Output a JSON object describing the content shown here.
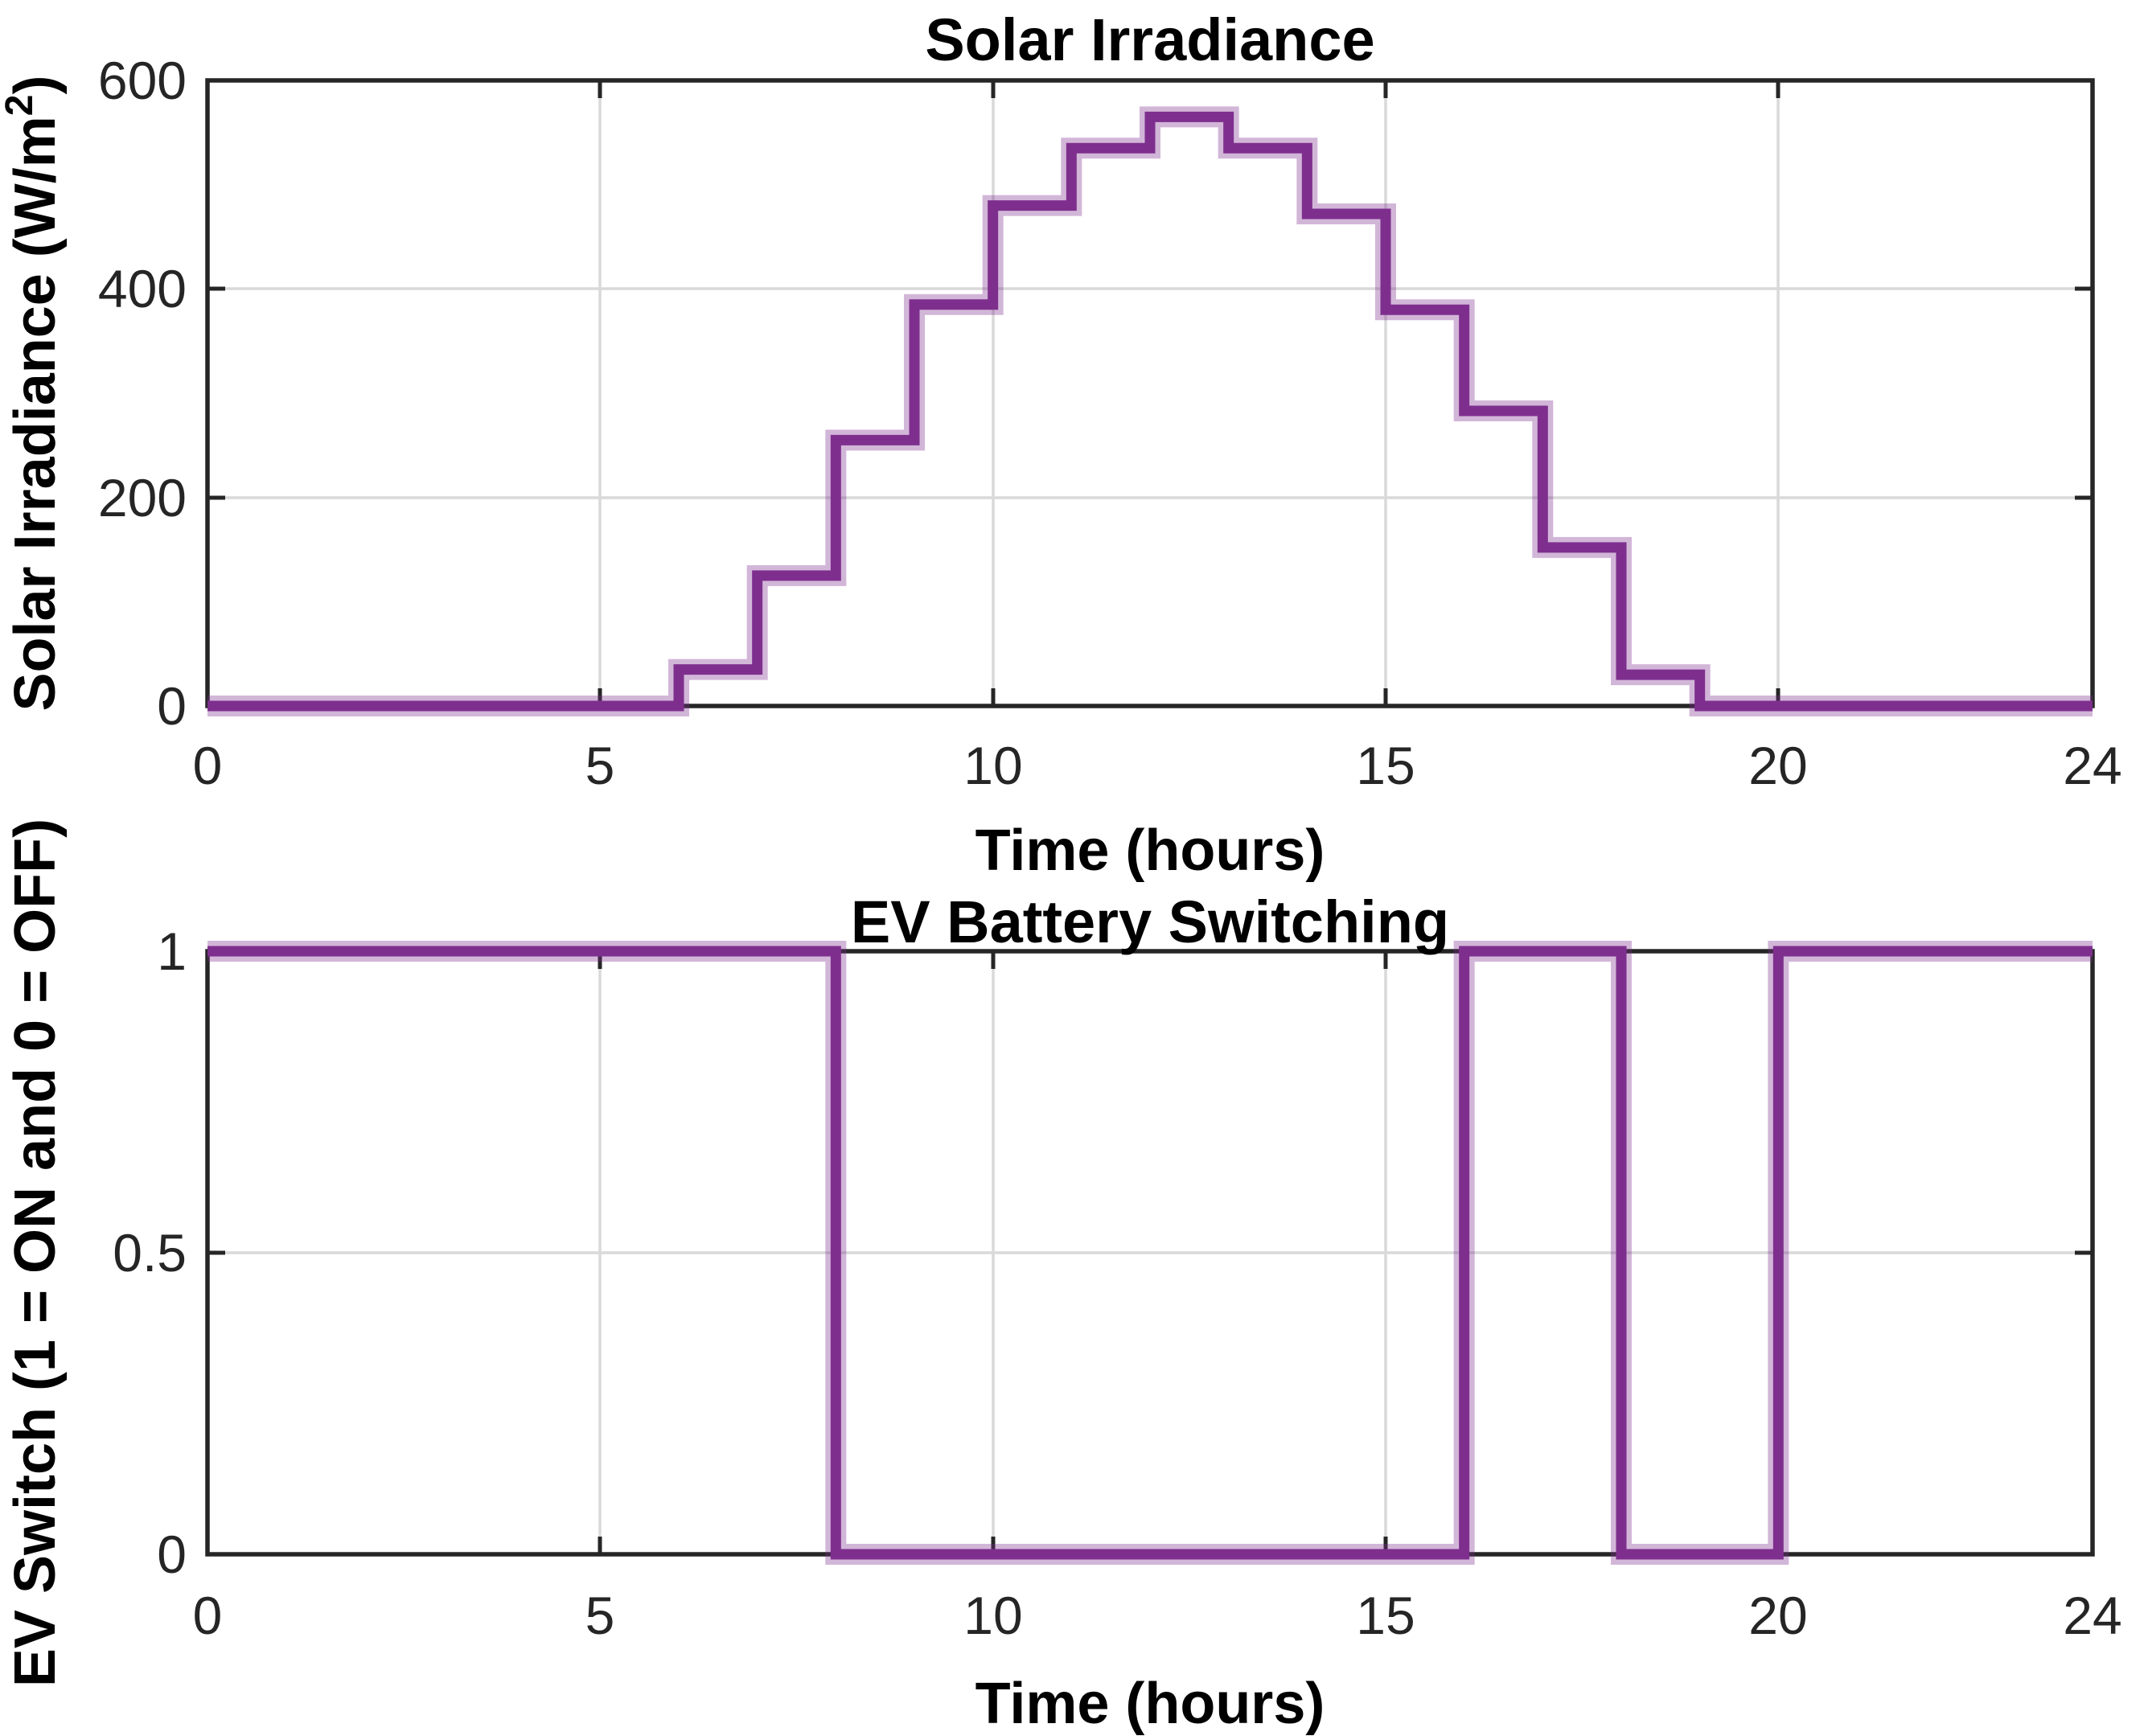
{
  "figure": {
    "background": "#ffffff",
    "line_color": "#7E2F8E",
    "line_halo_color": "rgba(126,47,142,0.35)",
    "axis_color": "#262626",
    "grid_color": "#d9d9d9"
  },
  "plot1": {
    "title": "Solar Irradiance",
    "xlabel": "Time (hours)",
    "ylabel_main": "Solar Irradiance (W/m",
    "ylabel_sup": "2",
    "ylabel_close": ")",
    "x_tick_labels": [
      "0",
      "5",
      "10",
      "15",
      "20",
      "24"
    ],
    "y_tick_labels": [
      "600",
      "400",
      "200",
      "0"
    ]
  },
  "plot2": {
    "title": "EV Battery Switching",
    "xlabel": "Time (hours)",
    "ylabel": "EV Switch (1 = ON and 0 = OFF)",
    "x_tick_labels": [
      "0",
      "5",
      "10",
      "15",
      "20",
      "24"
    ],
    "y_tick_labels": [
      "1",
      "0.5",
      "0"
    ]
  },
  "chart_data": [
    {
      "type": "line",
      "subtype": "stairs",
      "title": "Solar Irradiance",
      "xlabel": "Time (hours)",
      "ylabel": "Solar Irradiance (W/m^2)",
      "xlim": [
        0,
        24
      ],
      "ylim": [
        0,
        600
      ],
      "x_ticks": [
        0,
        5,
        10,
        15,
        20,
        24
      ],
      "y_ticks": [
        0,
        200,
        400,
        600
      ],
      "grid": true,
      "legend": "none",
      "x_step_hours": [
        0,
        1,
        2,
        3,
        4,
        5,
        6,
        7,
        8,
        9,
        10,
        11,
        12,
        13,
        14,
        15,
        16,
        17,
        18,
        19,
        20,
        21,
        22,
        23
      ],
      "values_by_hour": [
        0,
        0,
        0,
        0,
        0,
        0,
        35,
        125,
        255,
        385,
        480,
        535,
        565,
        535,
        472,
        380,
        283,
        152,
        30,
        0,
        0,
        0,
        0,
        0
      ]
    },
    {
      "type": "line",
      "subtype": "stairs",
      "title": "EV Battery Switching",
      "xlabel": "Time (hours)",
      "ylabel": "EV Switch (1 = ON and 0 = OFF)",
      "xlim": [
        0,
        24
      ],
      "ylim": [
        0,
        1
      ],
      "x_ticks": [
        0,
        5,
        10,
        15,
        20,
        24
      ],
      "y_ticks": [
        0,
        0.5,
        1
      ],
      "grid": true,
      "legend": "none",
      "x_step_hours": [
        0,
        1,
        2,
        3,
        4,
        5,
        6,
        7,
        8,
        9,
        10,
        11,
        12,
        13,
        14,
        15,
        16,
        17,
        18,
        19,
        20,
        21,
        22,
        23
      ],
      "values_by_hour": [
        1,
        1,
        1,
        1,
        1,
        1,
        1,
        1,
        0,
        0,
        0,
        0,
        0,
        0,
        0,
        0,
        1,
        1,
        0,
        0,
        1,
        1,
        1,
        1
      ]
    }
  ]
}
